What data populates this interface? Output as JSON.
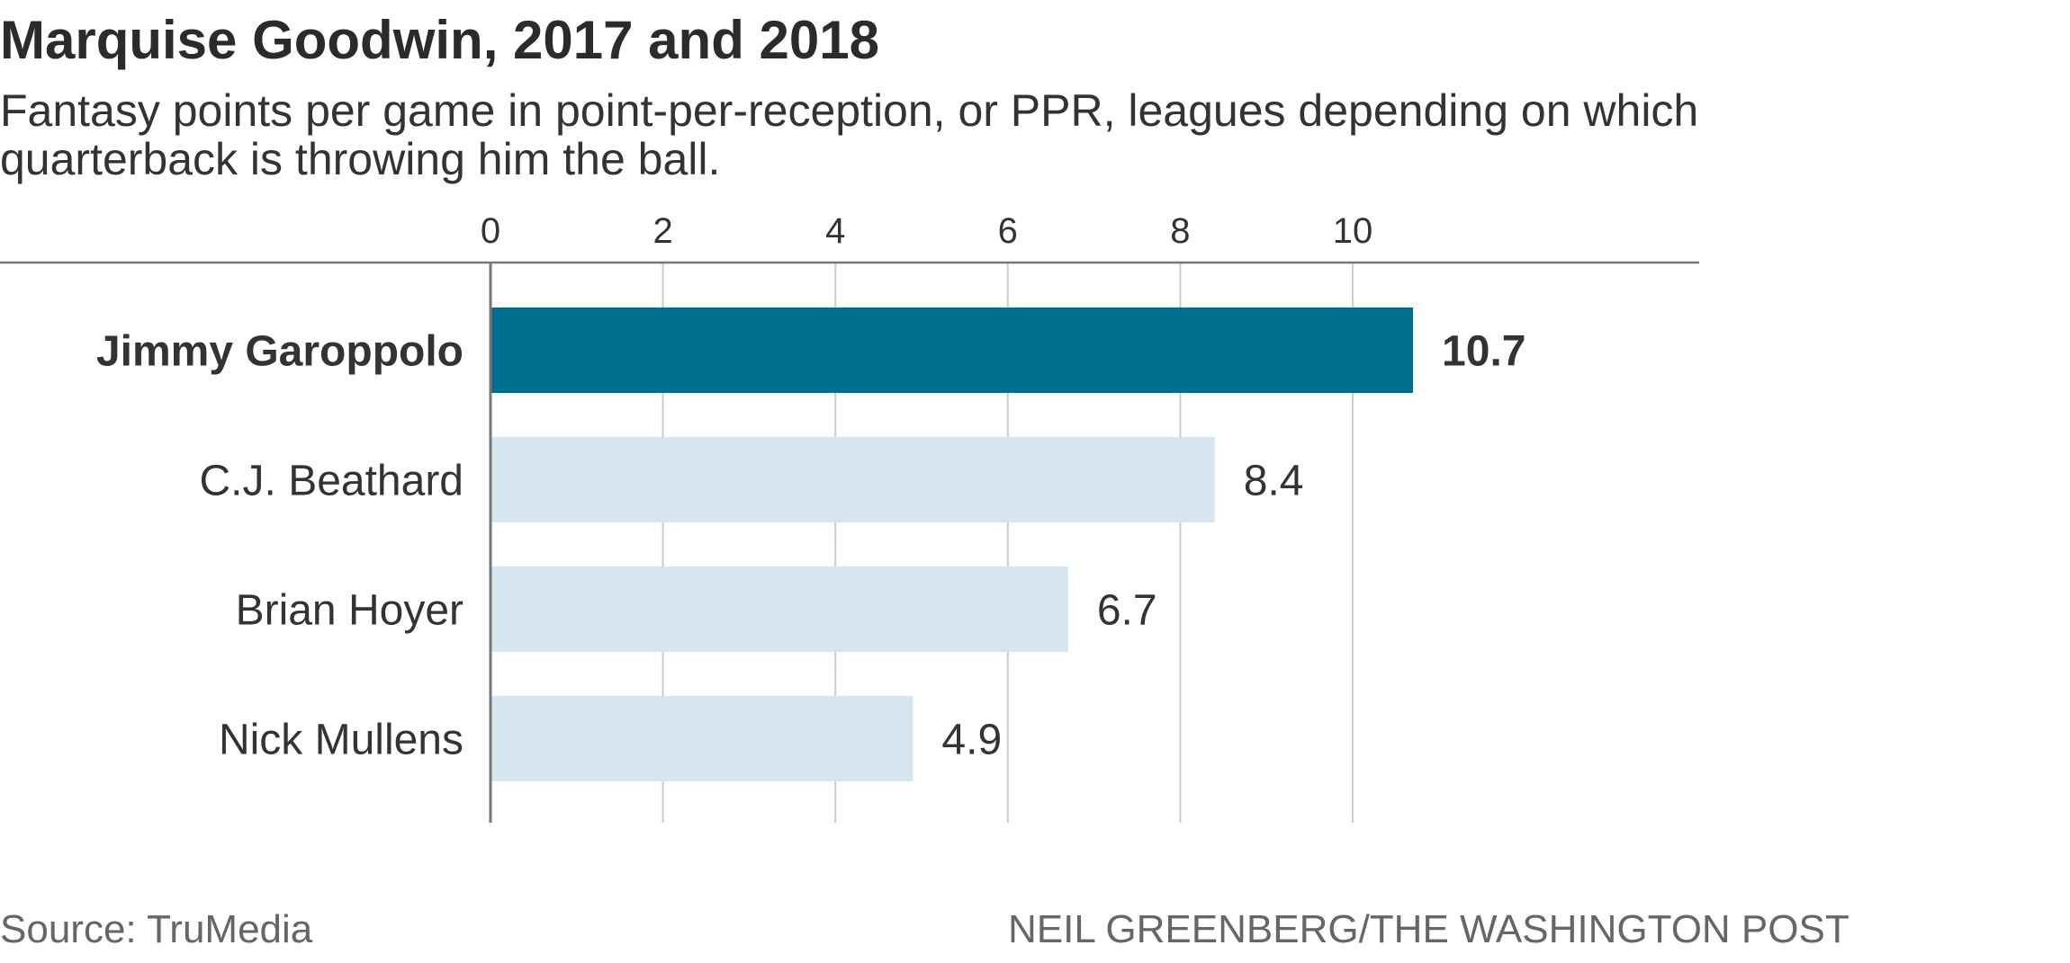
{
  "header": {
    "title": "Marquise Goodwin, 2017 and 2018",
    "subtitle": "Fantasy points per game in point-per-reception, or PPR, leagues depending on which quarterback is throwing him the ball."
  },
  "footer": {
    "source": "Source: TruMedia",
    "credit": "NEIL GREENBERG/THE WASHINGTON POST"
  },
  "colors": {
    "highlight": "#006f8f",
    "bar": "#d5e6f0",
    "axis": "#777777",
    "grid": "#cccccc",
    "text": "#333333"
  },
  "chart_data": {
    "type": "bar",
    "orientation": "horizontal",
    "title": "Marquise Goodwin, 2017 and 2018",
    "subtitle": "Fantasy points per game in point-per-reception, or PPR, leagues depending on which quarterback is throwing him the ball.",
    "xlabel": "",
    "ylabel": "",
    "xlim": [
      0,
      12
    ],
    "xticks": [
      0,
      2,
      4,
      6,
      8,
      10
    ],
    "grid": true,
    "legend": "none",
    "categories": [
      "Jimmy Garoppolo",
      "C.J. Beathard",
      "Brian Hoyer",
      "Nick Mullens"
    ],
    "values": [
      10.7,
      8.4,
      6.7,
      4.9
    ],
    "value_labels": [
      "10.7",
      "8.4",
      "6.7",
      "4.9"
    ],
    "highlighted": [
      "Jimmy Garoppolo"
    ]
  }
}
